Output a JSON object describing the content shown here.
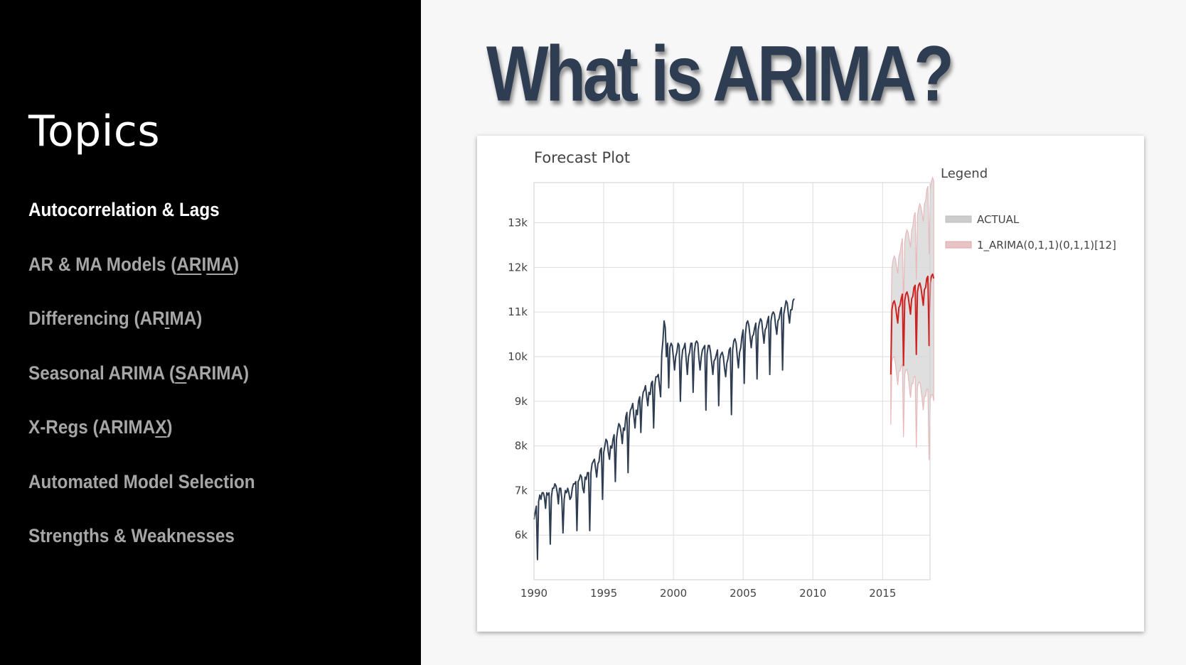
{
  "sidebar": {
    "title": "Topics",
    "items": [
      {
        "parts": [
          {
            "t": "Autocorrelation & Lags"
          }
        ],
        "active": true
      },
      {
        "parts": [
          {
            "t": "AR & MA Models ("
          },
          {
            "t": "AR",
            "u": true
          },
          {
            "t": "I"
          },
          {
            "t": "MA",
            "u": true
          },
          {
            "t": ")"
          }
        ],
        "active": false
      },
      {
        "parts": [
          {
            "t": "Differencing (AR"
          },
          {
            "t": "I",
            "u": true
          },
          {
            "t": "MA)"
          }
        ],
        "active": false
      },
      {
        "parts": [
          {
            "t": "Seasonal ARIMA ("
          },
          {
            "t": "S",
            "u": true
          },
          {
            "t": "ARIMA)"
          }
        ],
        "active": false
      },
      {
        "parts": [
          {
            "t": "X-Regs (ARIMA"
          },
          {
            "t": "X",
            "u": true
          },
          {
            "t": ")"
          }
        ],
        "active": false
      },
      {
        "parts": [
          {
            "t": "Automated Model Selection"
          }
        ],
        "active": false
      },
      {
        "parts": [
          {
            "t": "Strengths & Weaknesses"
          }
        ],
        "active": false
      }
    ]
  },
  "slide": {
    "title": "What is ARIMA?"
  },
  "chart_data": {
    "type": "line",
    "title": "Forecast Plot",
    "legend_title": "Legend",
    "legend_position": "right",
    "xlabel": "",
    "ylabel": "",
    "xlim": [
      1990,
      2018.4
    ],
    "ylim": [
      5000,
      13900
    ],
    "x_ticks": [
      1990,
      1995,
      2000,
      2005,
      2010,
      2015
    ],
    "y_ticks": [
      6000,
      7000,
      8000,
      9000,
      10000,
      11000,
      12000,
      13000
    ],
    "y_tick_labels": [
      "6k",
      "7k",
      "8k",
      "9k",
      "10k",
      "11k",
      "12k",
      "13k"
    ],
    "grid": true,
    "colors": {
      "actual": "#2e3d52",
      "forecast": "#cc2222",
      "actual_band": "#cccccc",
      "forecast_band": "#e8b8bb"
    },
    "series": [
      {
        "name": "ACTUAL",
        "type": "line",
        "start": 1990,
        "step": 0.0833,
        "values": [
          6350,
          6500,
          6650,
          5450,
          6750,
          6900,
          6800,
          6950,
          6950,
          6850,
          6600,
          6950,
          6900,
          6950,
          5800,
          6850,
          7050,
          7050,
          7150,
          7100,
          6950,
          6700,
          7050,
          7050,
          6800,
          6050,
          6800,
          7000,
          6950,
          7050,
          6950,
          6800,
          6850,
          7050,
          7150,
          7150,
          7200,
          6100,
          7200,
          7250,
          7350,
          7300,
          7050,
          6950,
          7300,
          7250,
          7400,
          7400,
          6100,
          7400,
          7600,
          7650,
          7700,
          7500,
          7300,
          7600,
          7650,
          7900,
          7950,
          6800,
          7850,
          8000,
          8150,
          8100,
          7850,
          7700,
          8000,
          7950,
          8150,
          8250,
          7200,
          8150,
          8350,
          8500,
          8450,
          8300,
          8050,
          8400,
          8350,
          8650,
          8750,
          7400,
          8600,
          8800,
          8850,
          8950,
          8650,
          8400,
          8800,
          8700,
          9000,
          9100,
          8300,
          9000,
          9200,
          9250,
          9350,
          9100,
          8900,
          9200,
          9150,
          9400,
          9450,
          8400,
          9350,
          9550,
          9550,
          9600,
          9350,
          9100,
          10050,
          10350,
          10800,
          10650,
          10000,
          10300,
          9300,
          10200,
          10300,
          10250,
          10000,
          9700,
          10000,
          10100,
          10300,
          10250,
          9000,
          9900,
          10150,
          10200,
          10300,
          9950,
          9600,
          10000,
          10100,
          10300,
          10300,
          9200,
          10100,
          10300,
          10350,
          10300,
          9950,
          9700,
          10000,
          10150,
          10200,
          10250,
          8800,
          10050,
          10250,
          10250,
          10100,
          9850,
          9600,
          9900,
          9950,
          10050,
          10150,
          8900,
          9950,
          10050,
          10100,
          10000,
          9750,
          9550,
          9850,
          9950,
          10150,
          10200,
          8700,
          10150,
          10350,
          10400,
          10300,
          10000,
          9750,
          10100,
          10200,
          10450,
          10600,
          9400,
          10500,
          10750,
          10800,
          10700,
          10450,
          10200,
          10450,
          10500,
          10650,
          10750,
          9500,
          10600,
          10750,
          10850,
          10800,
          10550,
          10300,
          10600,
          10650,
          10800,
          10900,
          9600,
          10800,
          10950,
          11000,
          10950,
          10700,
          10500,
          10800,
          10850,
          11000,
          11100,
          9700,
          10950,
          11100,
          11250,
          11200,
          10950,
          10750,
          11050,
          11050,
          11250,
          11300
        ]
      },
      {
        "name": "1_ARIMA(0,1,1)(0,1,1)[12]",
        "type": "line",
        "start": 2015.583,
        "step": 0.0833,
        "values": [
          9600,
          11050,
          11200,
          11250,
          11150,
          10950,
          10750,
          11100,
          11150,
          11300,
          11400,
          9800,
          11250,
          11400,
          11450,
          11350,
          11150,
          10950,
          11300,
          11350,
          11550,
          11600,
          10050,
          11450,
          11600,
          11650,
          11550,
          11350,
          11150,
          11500,
          11550,
          11750,
          11800,
          10250,
          11650,
          11800,
          11850,
          11750
        ]
      }
    ]
  }
}
